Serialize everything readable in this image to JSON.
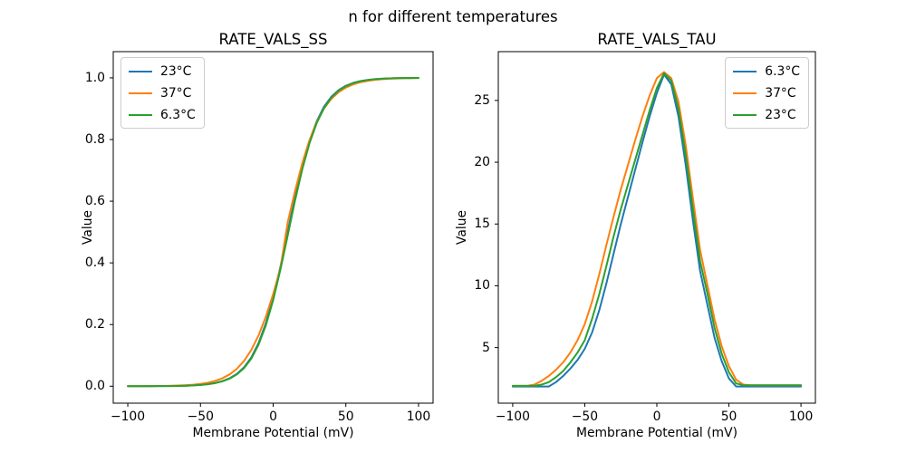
{
  "figure": {
    "suptitle": "n for different temperatures"
  },
  "colors": {
    "c0_blue": "#1f77b4",
    "c1_orange": "#ff7f0e",
    "c2_green": "#2ca02c",
    "axis": "#000000",
    "legend_border": "#cccccc",
    "background": "#ffffff"
  },
  "chart_data": [
    {
      "type": "line",
      "title": "RATE_VALS_SS",
      "xlabel": "Membrane Potential (mV)",
      "ylabel": "Value",
      "xlim": [
        -110,
        110
      ],
      "ylim": [
        -0.055,
        1.085
      ],
      "grid": false,
      "x_ticks": [
        -100,
        -50,
        0,
        50,
        100
      ],
      "x_tick_labels": [
        "−100",
        "−50",
        "0",
        "50",
        "100"
      ],
      "y_ticks": [
        0,
        0.2,
        0.4,
        0.6,
        0.8,
        1.0
      ],
      "y_tick_labels": [
        "0.0",
        "0.2",
        "0.4",
        "0.6",
        "0.8",
        "1.0"
      ],
      "legend_loc": "upper left",
      "x": [
        -100,
        -95,
        -90,
        -85,
        -80,
        -75,
        -70,
        -65,
        -60,
        -55,
        -50,
        -45,
        -40,
        -35,
        -30,
        -25,
        -20,
        -15,
        -10,
        -5,
        0,
        5,
        10,
        15,
        20,
        25,
        30,
        35,
        40,
        45,
        50,
        55,
        60,
        65,
        70,
        75,
        80,
        85,
        90,
        95,
        100
      ],
      "series": [
        {
          "name": "23°C",
          "color": "#1f77b4",
          "values": [
            0.0,
            0.0001,
            0.0001,
            0.0002,
            0.0003,
            0.0004,
            0.0007,
            0.0011,
            0.0017,
            0.0027,
            0.0043,
            0.0067,
            0.0105,
            0.0164,
            0.0256,
            0.0398,
            0.0613,
            0.0935,
            0.1403,
            0.2043,
            0.2871,
            0.3876,
            0.5,
            0.6124,
            0.7129,
            0.7957,
            0.8597,
            0.9065,
            0.9387,
            0.9602,
            0.9744,
            0.9836,
            0.9895,
            0.9933,
            0.9957,
            0.9973,
            0.9983,
            0.9989,
            0.9993,
            0.9996,
            0.9997
          ]
        },
        {
          "name": "37°C",
          "color": "#ff7f0e",
          "values": [
            0.0001,
            0.0002,
            0.0003,
            0.0004,
            0.0006,
            0.0009,
            0.0014,
            0.0022,
            0.0033,
            0.005,
            0.0075,
            0.0113,
            0.0171,
            0.0256,
            0.0381,
            0.0563,
            0.0821,
            0.1178,
            0.1653,
            0.2258,
            0.2987,
            0.3825,
            0.5312,
            0.6322,
            0.7227,
            0.7982,
            0.8571,
            0.9009,
            0.9317,
            0.9533,
            0.9683,
            0.9786,
            0.9856,
            0.9903,
            0.9935,
            0.9956,
            0.9971,
            0.998,
            0.9987,
            0.9991,
            0.9994
          ]
        },
        {
          "name": "6.3°C",
          "color": "#2ca02c",
          "values": [
            0.0,
            0.0001,
            0.0001,
            0.0002,
            0.0003,
            0.0004,
            0.0006,
            0.001,
            0.0016,
            0.0026,
            0.0041,
            0.0064,
            0.01,
            0.0157,
            0.0245,
            0.0381,
            0.0588,
            0.0898,
            0.1351,
            0.1976,
            0.279,
            0.3785,
            0.4886,
            0.601,
            0.703,
            0.788,
            0.854,
            0.902,
            0.936,
            0.9584,
            0.9733,
            0.9829,
            0.9891,
            0.993,
            0.9956,
            0.9972,
            0.9982,
            0.9989,
            0.9993,
            0.9995,
            0.9997
          ]
        }
      ]
    },
    {
      "type": "line",
      "title": "RATE_VALS_TAU",
      "xlabel": "Membrane Potential (mV)",
      "ylabel": "Value",
      "xlim": [
        -110,
        110
      ],
      "ylim": [
        0.5,
        28.95
      ],
      "grid": false,
      "x_ticks": [
        -100,
        -50,
        0,
        50,
        100
      ],
      "x_tick_labels": [
        "−100",
        "−50",
        "0",
        "50",
        "100"
      ],
      "y_ticks": [
        5,
        10,
        15,
        20,
        25
      ],
      "y_tick_labels": [
        "5",
        "10",
        "15",
        "20",
        "25"
      ],
      "legend_loc": "upper right",
      "x": [
        -100,
        -95,
        -90,
        -85,
        -80,
        -75,
        -70,
        -65,
        -60,
        -55,
        -50,
        -45,
        -40,
        -35,
        -30,
        -25,
        -20,
        -15,
        -10,
        -5,
        0,
        5,
        10,
        15,
        20,
        25,
        30,
        35,
        40,
        45,
        50,
        55,
        60,
        65,
        70,
        75,
        80,
        85,
        90,
        95,
        100
      ],
      "series": [
        {
          "name": "6.3°C",
          "color": "#1f77b4",
          "values": [
            1.85,
            1.85,
            1.85,
            1.85,
            1.85,
            1.85,
            2.2,
            2.7,
            3.3,
            4.0,
            4.9,
            6.2,
            8.0,
            10.2,
            12.6,
            15.0,
            17.2,
            19.4,
            21.6,
            23.7,
            25.6,
            27.1,
            26.3,
            23.7,
            19.8,
            15.3,
            11.2,
            8.5,
            5.8,
            3.9,
            2.5,
            1.85,
            1.85,
            1.85,
            1.85,
            1.85,
            1.85,
            1.85,
            1.85,
            1.85,
            1.85
          ]
        },
        {
          "name": "37°C",
          "color": "#ff7f0e",
          "values": [
            1.9,
            1.9,
            1.9,
            2.0,
            2.3,
            2.7,
            3.2,
            3.8,
            4.6,
            5.6,
            6.9,
            8.7,
            10.9,
            13.3,
            15.6,
            17.8,
            19.8,
            21.8,
            23.7,
            25.4,
            26.8,
            27.3,
            26.8,
            24.9,
            21.4,
            17.1,
            12.9,
            10.1,
            7.3,
            5.1,
            3.5,
            2.4,
            2.0,
            1.95,
            1.95,
            1.95,
            1.95,
            1.95,
            1.95,
            1.95,
            1.95
          ]
        },
        {
          "name": "23°C",
          "color": "#2ca02c",
          "values": [
            1.9,
            1.9,
            1.9,
            1.9,
            2.0,
            2.2,
            2.6,
            3.1,
            3.8,
            4.6,
            5.6,
            7.3,
            9.3,
            11.6,
            14.0,
            16.2,
            18.2,
            20.2,
            22.2,
            24.2,
            26.0,
            27.2,
            26.6,
            24.3,
            20.6,
            16.2,
            12.0,
            9.4,
            6.6,
            4.5,
            3.0,
            2.1,
            1.95,
            1.95,
            1.95,
            1.95,
            1.95,
            1.95,
            1.95,
            1.95,
            1.95
          ]
        }
      ]
    }
  ]
}
